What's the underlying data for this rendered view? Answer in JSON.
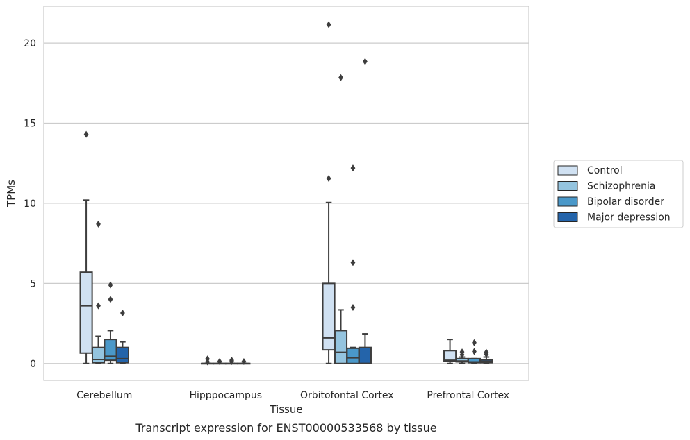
{
  "chart_data": {
    "type": "box",
    "title": "",
    "caption": "Transcript expression for ENST00000533568 by tissue",
    "xlabel": "Tissue",
    "ylabel": "TPMs",
    "ylim": [
      -1.05,
      22.3
    ],
    "yticks": [
      0,
      5,
      10,
      15,
      20
    ],
    "grid": true,
    "legend_position": "right",
    "categories": [
      "Cerebellum",
      "Hipppocampus",
      "Orbitofontal Cortex",
      "Prefrontal Cortex"
    ],
    "series": [
      {
        "name": "Control",
        "color": "#d0e1f2",
        "boxes": [
          {
            "q1": 0.65,
            "median": 3.6,
            "q3": 5.7,
            "whislo": 0.0,
            "whishi": 10.2,
            "fliers": [
              14.3
            ]
          },
          {
            "q1": 0.0,
            "median": 0.0,
            "q3": 0.0,
            "whislo": 0.0,
            "whishi": 0.0,
            "fliers": [
              0.28,
              0.1
            ]
          },
          {
            "q1": 0.85,
            "median": 1.6,
            "q3": 5.0,
            "whislo": 0.0,
            "whishi": 10.05,
            "fliers": [
              11.55,
              21.15
            ]
          },
          {
            "q1": 0.15,
            "median": 0.2,
            "q3": 0.8,
            "whislo": 0.0,
            "whishi": 1.5,
            "fliers": []
          }
        ]
      },
      {
        "name": "Schizophrenia",
        "color": "#94c4df",
        "boxes": [
          {
            "q1": 0.05,
            "median": 0.25,
            "q3": 1.0,
            "whislo": 0.0,
            "whishi": 1.7,
            "fliers": [
              3.6,
              8.7
            ]
          },
          {
            "q1": 0.0,
            "median": 0.0,
            "q3": 0.0,
            "whislo": 0.0,
            "whishi": 0.0,
            "fliers": [
              0.12
            ]
          },
          {
            "q1": 0.0,
            "median": 0.7,
            "q3": 2.05,
            "whislo": 0.0,
            "whishi": 3.35,
            "fliers": [
              17.85
            ]
          },
          {
            "q1": 0.1,
            "median": 0.15,
            "q3": 0.3,
            "whislo": 0.0,
            "whishi": 0.4,
            "fliers": [
              0.55,
              0.72
            ]
          }
        ]
      },
      {
        "name": "Bipolar disorder",
        "color": "#4a98c9",
        "boxes": [
          {
            "q1": 0.2,
            "median": 0.45,
            "q3": 1.5,
            "whislo": 0.0,
            "whishi": 2.05,
            "fliers": [
              4.0,
              4.9
            ]
          },
          {
            "q1": 0.0,
            "median": 0.0,
            "q3": 0.0,
            "whislo": 0.0,
            "whishi": 0.0,
            "fliers": [
              0.2,
              0.12
            ]
          },
          {
            "q1": 0.0,
            "median": 0.35,
            "q3": 0.95,
            "whislo": 0.0,
            "whishi": 1.0,
            "fliers": [
              3.5,
              6.3,
              12.2
            ]
          },
          {
            "q1": 0.05,
            "median": 0.1,
            "q3": 0.3,
            "whislo": 0.0,
            "whishi": 0.3,
            "fliers": [
              0.75,
              1.3
            ]
          }
        ]
      },
      {
        "name": "Major depression",
        "color": "#2464aa",
        "boxes": [
          {
            "q1": 0.05,
            "median": 0.3,
            "q3": 1.0,
            "whislo": 0.0,
            "whishi": 1.35,
            "fliers": [
              3.15
            ]
          },
          {
            "q1": 0.0,
            "median": 0.0,
            "q3": 0.0,
            "whislo": 0.0,
            "whishi": 0.0,
            "fliers": [
              0.12
            ]
          },
          {
            "q1": 0.0,
            "median": 0.0,
            "q3": 1.0,
            "whislo": 0.0,
            "whishi": 1.85,
            "fliers": [
              18.85
            ]
          },
          {
            "q1": 0.05,
            "median": 0.15,
            "q3": 0.25,
            "whislo": 0.0,
            "whishi": 0.4,
            "fliers": [
              0.58,
              0.7
            ]
          }
        ]
      }
    ]
  }
}
